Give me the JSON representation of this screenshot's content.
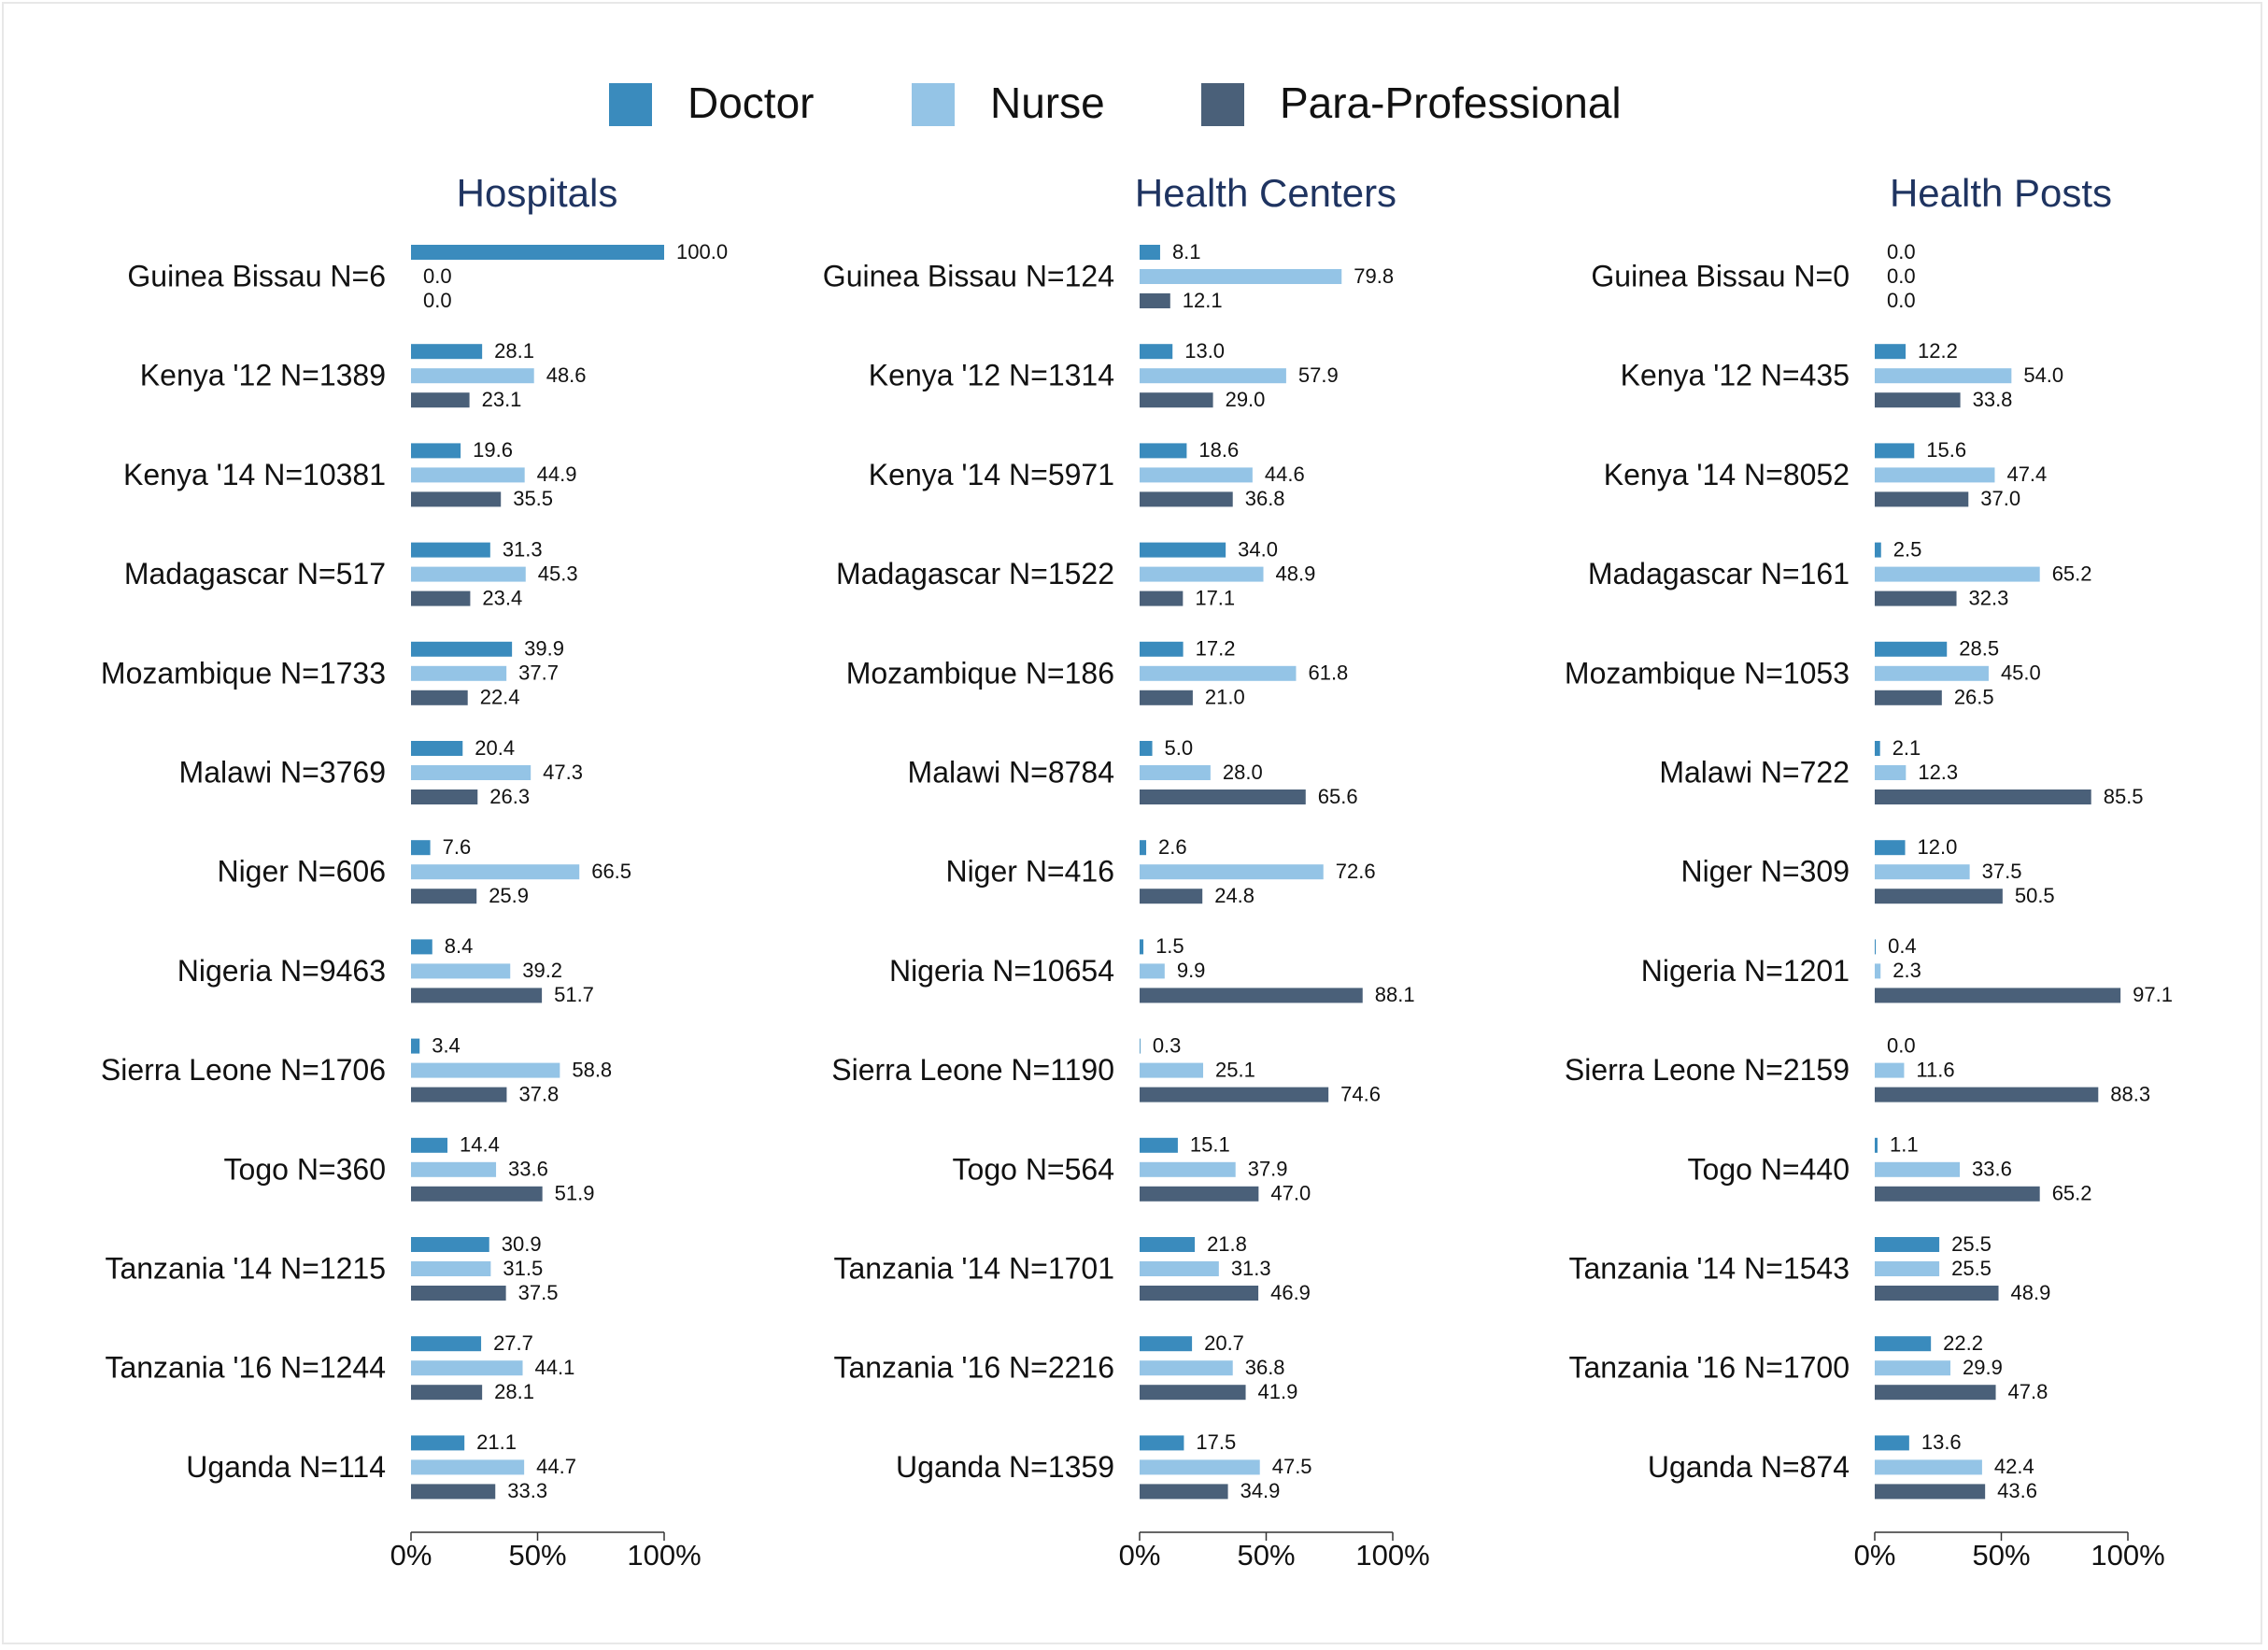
{
  "colors": {
    "doctor": "#3a8bbd",
    "nurse": "#94c4e6",
    "para": "#4a6079",
    "title": "#1f3461",
    "text": "#111111",
    "axis": "#333333"
  },
  "legend": [
    {
      "key": "doctor",
      "label": "Doctor"
    },
    {
      "key": "nurse",
      "label": "Nurse"
    },
    {
      "key": "para",
      "label": "Para-Professional"
    }
  ],
  "chart_data": {
    "type": "bar",
    "orientation": "horizontal",
    "xlim": [
      0,
      100
    ],
    "xticks": [
      "0%",
      "50%",
      "100%"
    ],
    "series_names": [
      "Doctor",
      "Nurse",
      "Para-Professional"
    ],
    "panels": [
      {
        "title": "Hospitals",
        "categories": [
          "Guinea Bissau N=6",
          "Kenya '12 N=1389",
          "Kenya '14 N=10381",
          "Madagascar N=517",
          "Mozambique N=1733",
          "Malawi N=3769",
          "Niger N=606",
          "Nigeria N=9463",
          "Sierra Leone N=1706",
          "Togo N=360",
          "Tanzania '14 N=1215",
          "Tanzania '16 N=1244",
          "Uganda N=114"
        ],
        "series": [
          {
            "name": "Doctor",
            "values": [
              100.0,
              28.1,
              19.6,
              31.3,
              39.9,
              20.4,
              7.6,
              8.4,
              3.4,
              14.4,
              30.9,
              27.7,
              21.1
            ]
          },
          {
            "name": "Nurse",
            "values": [
              0.0,
              48.6,
              44.9,
              45.3,
              37.7,
              47.3,
              66.5,
              39.2,
              58.8,
              33.6,
              31.5,
              44.1,
              44.7
            ]
          },
          {
            "name": "Para-Professional",
            "values": [
              0.0,
              23.1,
              35.5,
              23.4,
              22.4,
              26.3,
              25.9,
              51.7,
              37.8,
              51.9,
              37.5,
              28.1,
              33.3
            ]
          }
        ]
      },
      {
        "title": "Health Centers",
        "categories": [
          "Guinea Bissau N=124",
          "Kenya '12 N=1314",
          "Kenya '14 N=5971",
          "Madagascar N=1522",
          "Mozambique N=186",
          "Malawi N=8784",
          "Niger N=416",
          "Nigeria N=10654",
          "Sierra Leone N=1190",
          "Togo N=564",
          "Tanzania '14 N=1701",
          "Tanzania '16 N=2216",
          "Uganda N=1359"
        ],
        "series": [
          {
            "name": "Doctor",
            "values": [
              8.1,
              13.0,
              18.6,
              34.0,
              17.2,
              5.0,
              2.6,
              1.5,
              0.3,
              15.1,
              21.8,
              20.7,
              17.5
            ]
          },
          {
            "name": "Nurse",
            "values": [
              79.8,
              57.9,
              44.6,
              48.9,
              61.8,
              28.0,
              72.6,
              9.9,
              25.1,
              37.9,
              31.3,
              36.8,
              47.5
            ]
          },
          {
            "name": "Para-Professional",
            "values": [
              12.1,
              29.0,
              36.8,
              17.1,
              21.0,
              65.6,
              24.8,
              88.1,
              74.6,
              47.0,
              46.9,
              41.9,
              34.9
            ]
          }
        ]
      },
      {
        "title": "Health Posts",
        "categories": [
          "Guinea Bissau N=0",
          "Kenya '12 N=435",
          "Kenya '14 N=8052",
          "Madagascar N=161",
          "Mozambique N=1053",
          "Malawi N=722",
          "Niger N=309",
          "Nigeria N=1201",
          "Sierra Leone N=2159",
          "Togo N=440",
          "Tanzania '14 N=1543",
          "Tanzania '16 N=1700",
          "Uganda N=874"
        ],
        "series": [
          {
            "name": "Doctor",
            "values": [
              0.0,
              12.2,
              15.6,
              2.5,
              28.5,
              2.1,
              12.0,
              0.4,
              0.0,
              1.1,
              25.5,
              22.2,
              13.6
            ]
          },
          {
            "name": "Nurse",
            "values": [
              0.0,
              54.0,
              47.4,
              65.2,
              45.0,
              12.3,
              37.5,
              2.3,
              11.6,
              33.6,
              25.5,
              29.9,
              42.4
            ]
          },
          {
            "name": "Para-Professional",
            "values": [
              0.0,
              33.8,
              37.0,
              32.3,
              26.5,
              85.5,
              50.5,
              97.1,
              88.3,
              65.2,
              48.9,
              47.8,
              43.6
            ]
          }
        ]
      }
    ]
  }
}
